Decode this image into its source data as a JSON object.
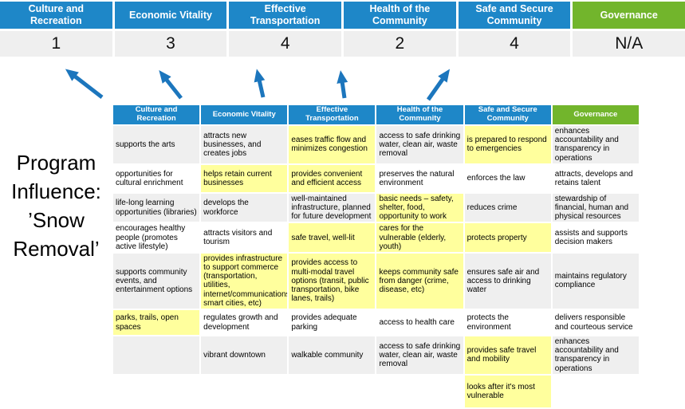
{
  "colors": {
    "blue": "#1e87c8",
    "green": "#72b52c",
    "yellow": "#ffff9d",
    "stripe": "#efefef",
    "arrow": "#1c76bd"
  },
  "program_label": {
    "lines": [
      "Program",
      "Influence:",
      "’Snow",
      "Removal’"
    ]
  },
  "scoreboard": {
    "columns": [
      {
        "label": "Culture and Recreation",
        "score": "1",
        "color": "blue"
      },
      {
        "label": "Economic Vitality",
        "score": "3",
        "color": "blue"
      },
      {
        "label": "Effective Transportation",
        "score": "4",
        "color": "blue"
      },
      {
        "label": "Health of the Community",
        "score": "2",
        "color": "blue"
      },
      {
        "label": "Safe and Secure Community",
        "score": "4",
        "color": "blue"
      },
      {
        "label": "Governance",
        "score": "N/A",
        "color": "green"
      }
    ]
  },
  "matrix": {
    "headers": [
      {
        "label": "Culture and Recreation",
        "color": "blue"
      },
      {
        "label": "Economic Vitality",
        "color": "blue"
      },
      {
        "label": "Effective Transportation",
        "color": "blue"
      },
      {
        "label": "Health of the Community",
        "color": "blue"
      },
      {
        "label": "Safe and Secure Community",
        "color": "blue"
      },
      {
        "label": "Governance",
        "color": "green"
      }
    ],
    "rows": [
      [
        {
          "t": "supports the arts"
        },
        {
          "t": "attracts new businesses, and creates jobs"
        },
        {
          "t": "eases traffic flow and minimizes congestion",
          "h": true
        },
        {
          "t": "access to safe drinking water, clean air, waste removal"
        },
        {
          "t": "is prepared to respond to emergencies",
          "h": true
        },
        {
          "t": "enhances accountability and transparency in operations"
        }
      ],
      [
        {
          "t": "opportunities for cultural enrichment"
        },
        {
          "t": "helps retain current businesses",
          "h": true
        },
        {
          "t": "provides convenient and efficient access",
          "h": true
        },
        {
          "t": "preserves the natural environment"
        },
        {
          "t": "enforces the law"
        },
        {
          "t": "attracts, develops and retains talent"
        }
      ],
      [
        {
          "t": "life-long learning opportunities (libraries)"
        },
        {
          "t": "develops the workforce"
        },
        {
          "t": "well-maintained infrastructure, planned for future development"
        },
        {
          "t": "basic needs – safety, shelter, food, opportunity to work",
          "h": true
        },
        {
          "t": "reduces crime"
        },
        {
          "t": "stewardship of financial, human and physical resources"
        }
      ],
      [
        {
          "t": "encourages healthy people (promotes active lifestyle)"
        },
        {
          "t": "attracts visitors and tourism"
        },
        {
          "t": "safe travel, well-lit",
          "h": true
        },
        {
          "t": "cares for the vulnerable (elderly, youth)",
          "h": true
        },
        {
          "t": "protects property",
          "h": true
        },
        {
          "t": "assists and supports decision makers"
        }
      ],
      [
        {
          "t": "supports community events, and entertainment options"
        },
        {
          "t": "provides infrastructure to support commerce (transportation, utilities, internet/communications, smart cities, etc)",
          "h": true
        },
        {
          "t": "provides access to multi-modal travel options (transit, public transportation, bike lanes, trails)",
          "h": true
        },
        {
          "t": "keeps community safe from danger (crime, disease, etc)",
          "h": true
        },
        {
          "t": "ensures safe air and access to drinking water"
        },
        {
          "t": "maintains regulatory compliance"
        }
      ],
      [
        {
          "t": "parks, trails, open spaces",
          "h": true
        },
        {
          "t": "regulates growth and development"
        },
        {
          "t": "provides adequate parking"
        },
        {
          "t": "access to health care"
        },
        {
          "t": "protects the environment"
        },
        {
          "t": "delivers responsible and courteous service"
        }
      ],
      [
        {
          "t": ""
        },
        {
          "t": "vibrant downtown"
        },
        {
          "t": "walkable community"
        },
        {
          "t": "access to safe drinking water, clean air, waste removal"
        },
        {
          "t": "provides safe travel and mobility",
          "h": true
        },
        {
          "t": "enhances accountability and transparency in operations"
        }
      ],
      [
        {
          "t": ""
        },
        {
          "t": ""
        },
        {
          "t": ""
        },
        {
          "t": ""
        },
        {
          "t": "looks after it's most vulnerable",
          "h": true
        },
        {
          "t": ""
        }
      ]
    ]
  }
}
